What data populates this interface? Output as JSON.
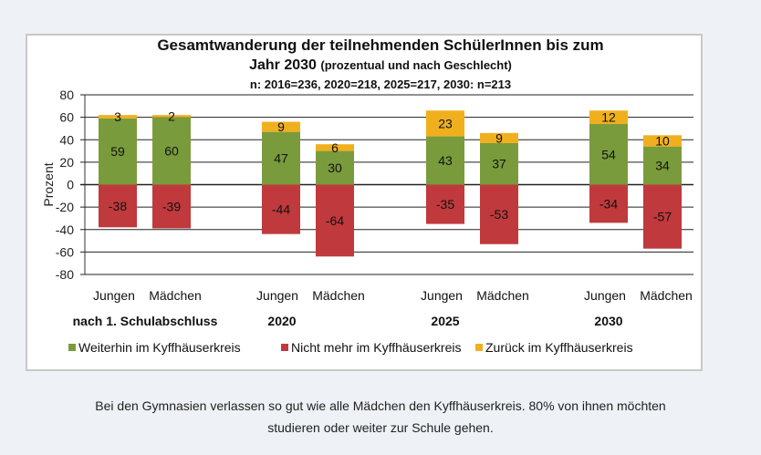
{
  "chart_data": {
    "type": "bar",
    "stacked": true,
    "title": "Gesamtwanderung der teilnehmenden SchülerInnen bis zum",
    "title_line2": "Jahr 2030",
    "title_line2_suffix": "(prozentual und nach Geschlecht)",
    "subtitle": "n: 2016=236, 2020=218, 2025=217, 2030: n=213",
    "ylabel": "Prozent",
    "ylim": [
      -80,
      80
    ],
    "yticks": [
      80,
      60,
      40,
      20,
      0,
      -20,
      -40,
      -60,
      -80
    ],
    "grid": true,
    "groups": [
      "nach 1. Schulabschluss",
      "2020",
      "2025",
      "2030"
    ],
    "categories": [
      "Jungen",
      "Mädchen",
      "Jungen",
      "Mädchen",
      "Jungen",
      "Mädchen",
      "Jungen",
      "Mädchen"
    ],
    "series": [
      {
        "name": "Weiterhin im Kyffhäuserkreis",
        "color": "#7a9b3c",
        "values": [
          59,
          60,
          47,
          30,
          43,
          37,
          54,
          34
        ]
      },
      {
        "name": "Nicht mehr im Kyffhäuserkreis",
        "color": "#c0393c",
        "values": [
          -38,
          -39,
          -44,
          -64,
          -35,
          -53,
          -34,
          -57
        ]
      },
      {
        "name": "Zurück im Kyffhäuserkreis",
        "color": "#f0b01e",
        "values": [
          3,
          2,
          9,
          6,
          23,
          9,
          12,
          10
        ]
      }
    ],
    "legend": "bottom"
  },
  "caption_line1": "Bei den Gymnasien verlassen so gut wie alle Mädchen den Kyffhäuserkreis. 80% von ihnen möchten",
  "caption_line2": "studieren oder weiter zur Schule gehen."
}
